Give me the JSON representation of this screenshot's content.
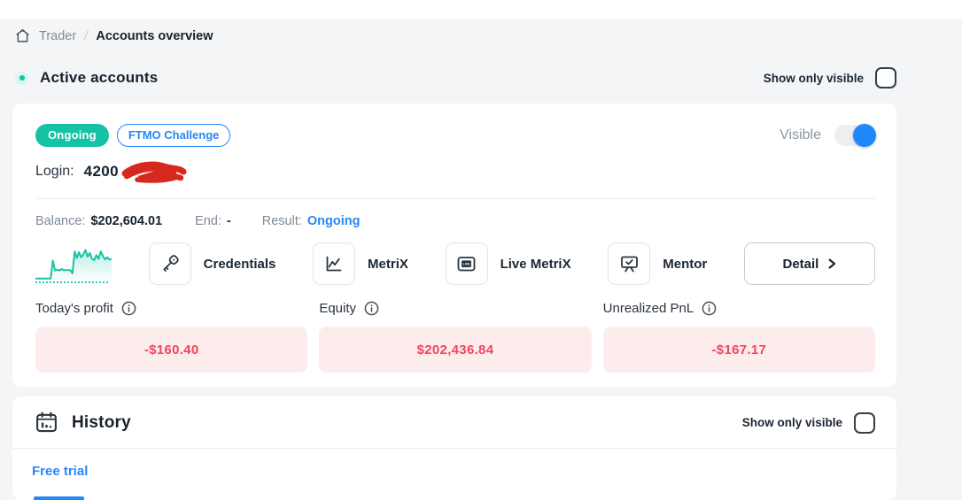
{
  "breadcrumb": {
    "parent": "Trader",
    "separator": "/",
    "current": "Accounts overview"
  },
  "active_accounts": {
    "title": "Active accounts",
    "show_only_visible_label": "Show only visible",
    "show_only_visible_checked": false,
    "card": {
      "status_badge": "Ongoing",
      "type_badge": "FTMO Challenge",
      "visible_label": "Visible",
      "visible_on": true,
      "login_label": "Login:",
      "login_value_visible": "4200",
      "login_redacted": true,
      "balance_label": "Balance:",
      "balance_value": "$202,604.01",
      "end_label": "End:",
      "end_value": "-",
      "result_label": "Result:",
      "result_value": "Ongoing",
      "actions": [
        {
          "label": "Credentials",
          "icon": "key-icon"
        },
        {
          "label": "MetriX",
          "icon": "chart-line-icon"
        },
        {
          "label": "Live MetriX",
          "icon": "live-screen-icon",
          "icon_text": "LIVE"
        },
        {
          "label": "Mentor",
          "icon": "presentation-board-icon"
        }
      ],
      "detail_button_label": "Detail",
      "metrics": [
        {
          "label": "Today's profit",
          "value": "-$160.40"
        },
        {
          "label": "Equity",
          "value": "$202,436.84"
        },
        {
          "label": "Unrealized PnL",
          "value": "-$167.17"
        }
      ]
    }
  },
  "history": {
    "title": "History",
    "show_only_visible_label": "Show only visible",
    "show_only_visible_checked": false,
    "tabs": [
      {
        "label": "Free trial",
        "active": true
      }
    ]
  },
  "chart_data": {
    "type": "line",
    "title": "Account balance sparkline",
    "axes": "hidden",
    "values": [
      6,
      6,
      6,
      6,
      6,
      6,
      6,
      6,
      55,
      28,
      30,
      28,
      32,
      29,
      29,
      29,
      29,
      20,
      80,
      62,
      78,
      64,
      72,
      84,
      66,
      76,
      60,
      56,
      70,
      60,
      80,
      68,
      58,
      64,
      58,
      60
    ]
  },
  "colors": {
    "teal": "#13c3a3",
    "blue": "#2688f7",
    "negative_text": "#f2455c",
    "negative_bg": "#fdecec",
    "dark_text": "#16222d",
    "gray_text": "#7d8b98",
    "scribble_red": "#d6281e"
  }
}
